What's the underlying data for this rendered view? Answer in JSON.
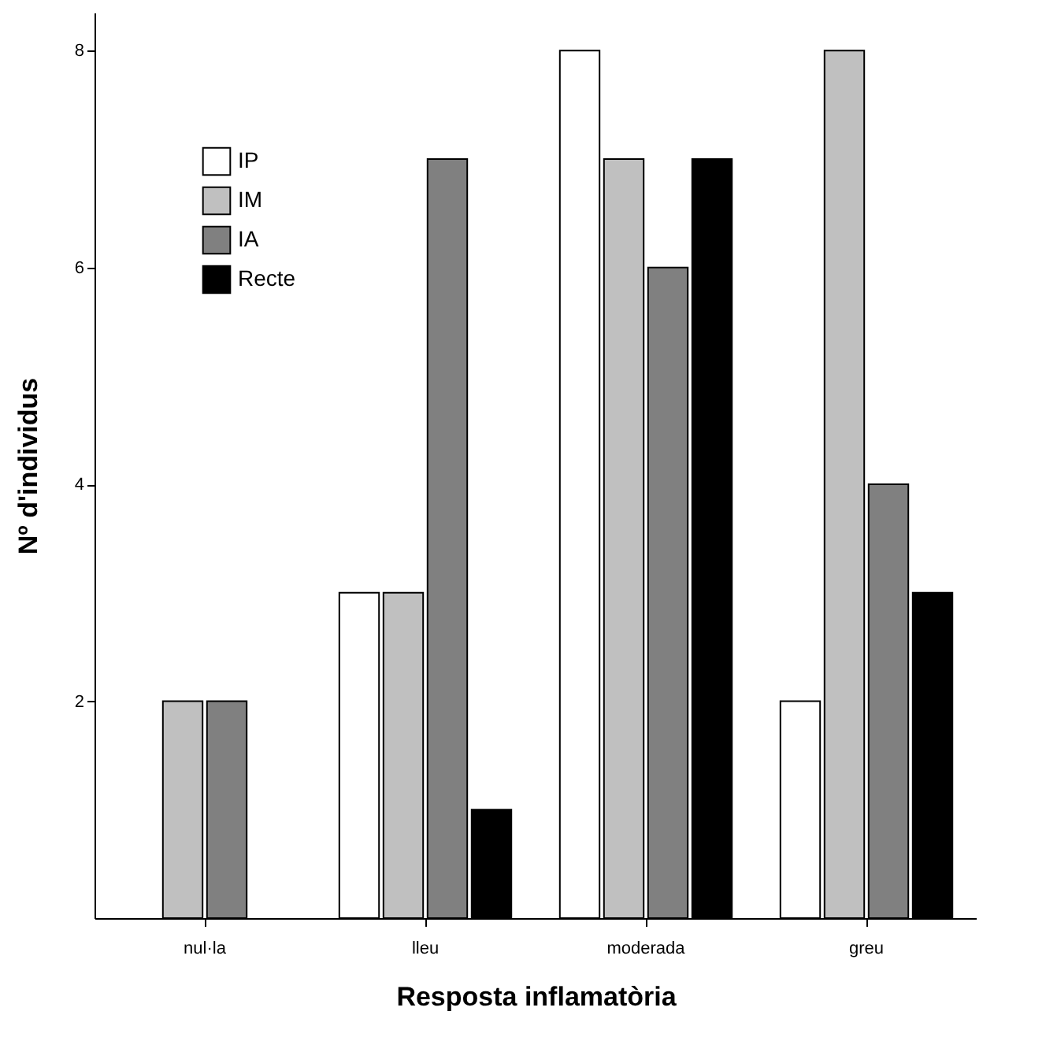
{
  "chart_data": {
    "type": "bar",
    "xlabel": "Resposta inflamatòria",
    "ylabel": "Nº d'individus",
    "categories": [
      "nul·la",
      "lleu",
      "moderada",
      "greu"
    ],
    "series": [
      {
        "name": "IP",
        "color": "#ffffff",
        "values": [
          null,
          3,
          8,
          2
        ]
      },
      {
        "name": "IM",
        "color": "#c0c0c0",
        "values": [
          2,
          3,
          7,
          8
        ]
      },
      {
        "name": "IA",
        "color": "#808080",
        "values": [
          2,
          7,
          6,
          4
        ]
      },
      {
        "name": "Recte",
        "color": "#000000",
        "values": [
          null,
          1,
          7,
          3
        ]
      }
    ],
    "ylim": [
      0,
      8.35
    ],
    "yticks": [
      2,
      4,
      6,
      8
    ],
    "grid": false,
    "legend": "top left"
  }
}
